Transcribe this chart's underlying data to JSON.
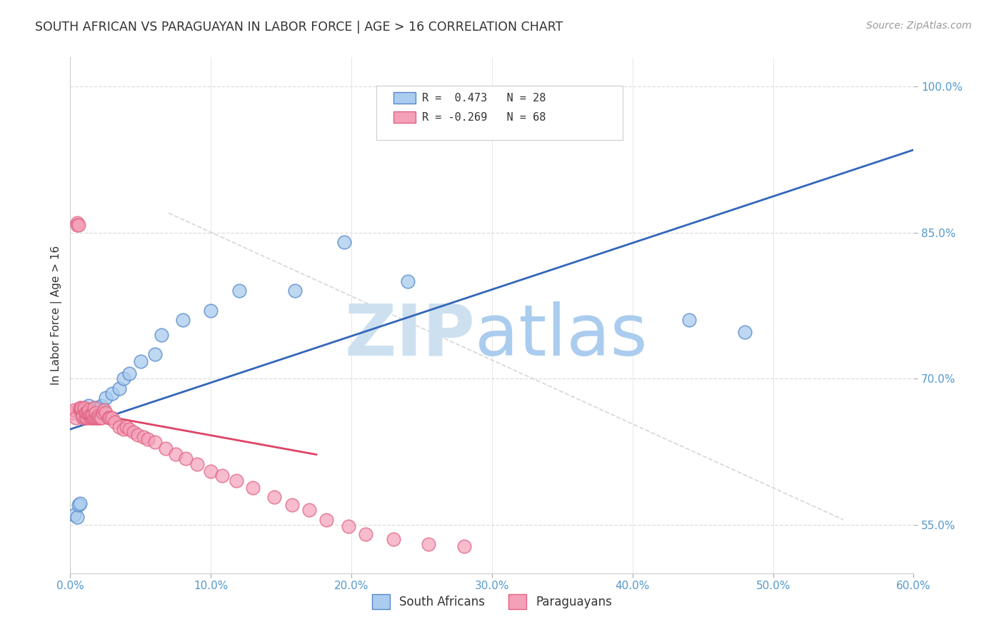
{
  "title": "SOUTH AFRICAN VS PARAGUAYAN IN LABOR FORCE | AGE > 16 CORRELATION CHART",
  "source": "Source: ZipAtlas.com",
  "ylabel": "In Labor Force | Age > 16",
  "xlim": [
    0.0,
    0.6
  ],
  "ylim": [
    0.5,
    1.03
  ],
  "xticks": [
    0.0,
    0.1,
    0.2,
    0.3,
    0.4,
    0.5,
    0.6
  ],
  "xticklabels": [
    "0.0%",
    "10.0%",
    "20.0%",
    "30.0%",
    "40.0%",
    "50.0%",
    "60.0%"
  ],
  "yticks_right": [
    0.55,
    0.7,
    0.85,
    1.0
  ],
  "yticklabels_right": [
    "55.0%",
    "70.0%",
    "85.0%",
    "100.0%"
  ],
  "grid_yticks": [
    0.55,
    0.7,
    0.85,
    1.0
  ],
  "legend_blue_text": "R =  0.473   N = 28",
  "legend_pink_text": "R = -0.269   N = 68",
  "legend_label_blue": "South Africans",
  "legend_label_pink": "Paraguayans",
  "blue_color": "#aaccee",
  "pink_color": "#f4a0b8",
  "blue_edge_color": "#5588cc",
  "pink_edge_color": "#e06080",
  "blue_line_color": "#3366bb",
  "pink_line_color": "#dd4466",
  "ref_line_color": "#cccccc",
  "watermark_zip_color": "#cce0f0",
  "watermark_atlas_color": "#aaccee",
  "background_color": "#ffffff",
  "grid_color": "#dddddd",
  "title_color": "#333333",
  "axis_label_color": "#5599cc",
  "ylabel_color": "#333333",
  "blue_dots_x": [
    0.003,
    0.005,
    0.006,
    0.007,
    0.01,
    0.012,
    0.013,
    0.015,
    0.017,
    0.018,
    0.02,
    0.022,
    0.025,
    0.03,
    0.035,
    0.038,
    0.042,
    0.05,
    0.06,
    0.065,
    0.08,
    0.1,
    0.12,
    0.16,
    0.195,
    0.24,
    0.44,
    0.48
  ],
  "blue_dots_y": [
    0.56,
    0.558,
    0.57,
    0.572,
    0.66,
    0.668,
    0.672,
    0.668,
    0.665,
    0.67,
    0.67,
    0.672,
    0.68,
    0.685,
    0.69,
    0.7,
    0.705,
    0.718,
    0.725,
    0.745,
    0.76,
    0.77,
    0.79,
    0.79,
    0.84,
    0.8,
    0.76,
    0.748
  ],
  "pink_dots_x": [
    0.002,
    0.003,
    0.004,
    0.005,
    0.005,
    0.006,
    0.007,
    0.007,
    0.008,
    0.008,
    0.009,
    0.009,
    0.01,
    0.01,
    0.011,
    0.011,
    0.012,
    0.012,
    0.013,
    0.013,
    0.014,
    0.014,
    0.015,
    0.015,
    0.016,
    0.016,
    0.017,
    0.017,
    0.018,
    0.018,
    0.019,
    0.02,
    0.02,
    0.021,
    0.022,
    0.023,
    0.024,
    0.025,
    0.027,
    0.028,
    0.03,
    0.032,
    0.035,
    0.038,
    0.04,
    0.042,
    0.045,
    0.048,
    0.052,
    0.055,
    0.06,
    0.068,
    0.075,
    0.082,
    0.09,
    0.1,
    0.108,
    0.118,
    0.13,
    0.145,
    0.158,
    0.17,
    0.182,
    0.198,
    0.21,
    0.23,
    0.255,
    0.28
  ],
  "pink_dots_y": [
    0.665,
    0.668,
    0.66,
    0.86,
    0.858,
    0.858,
    0.668,
    0.67,
    0.668,
    0.67,
    0.66,
    0.662,
    0.668,
    0.67,
    0.66,
    0.665,
    0.66,
    0.665,
    0.665,
    0.668,
    0.66,
    0.663,
    0.66,
    0.663,
    0.66,
    0.663,
    0.66,
    0.67,
    0.66,
    0.665,
    0.66,
    0.66,
    0.662,
    0.66,
    0.66,
    0.665,
    0.668,
    0.665,
    0.66,
    0.66,
    0.66,
    0.655,
    0.65,
    0.648,
    0.65,
    0.648,
    0.645,
    0.642,
    0.64,
    0.638,
    0.635,
    0.628,
    0.622,
    0.618,
    0.612,
    0.605,
    0.6,
    0.595,
    0.588,
    0.578,
    0.57,
    0.565,
    0.555,
    0.548,
    0.54,
    0.535,
    0.53,
    0.528
  ],
  "blue_line_x": [
    0.0,
    0.6
  ],
  "blue_line_y": [
    0.648,
    0.935
  ],
  "pink_line_x": [
    0.0,
    0.175
  ],
  "pink_line_y": [
    0.668,
    0.622
  ],
  "ref_line_x": [
    0.07,
    0.55
  ],
  "ref_line_y": [
    0.87,
    0.555
  ]
}
